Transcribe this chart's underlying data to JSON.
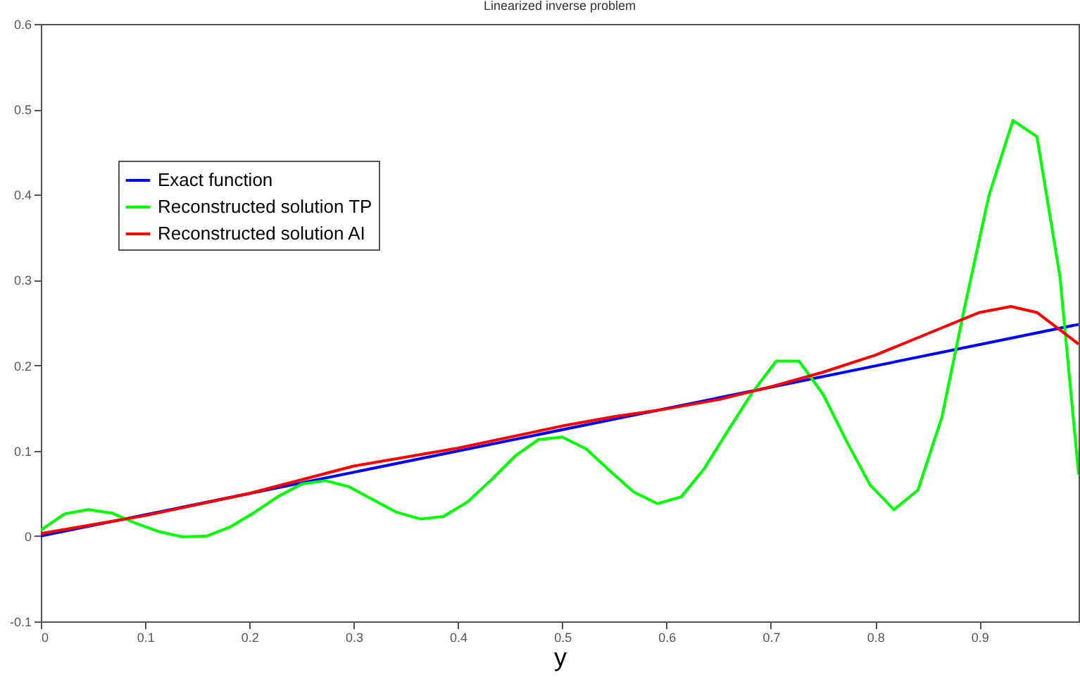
{
  "chart_data": {
    "type": "line",
    "title": "Linearized inverse problem",
    "xlabel": "y",
    "xlim": [
      0,
      0.995
    ],
    "xticks": [
      0,
      0.1,
      0.2,
      0.3,
      0.4,
      0.5,
      0.6,
      0.7,
      0.8,
      0.9
    ],
    "ylim": [
      -0.1,
      0.6
    ],
    "yticks": [
      -0.1,
      0,
      0.1,
      0.2,
      0.3,
      0.4,
      0.5,
      0.6
    ],
    "grid": false,
    "legend": "top left",
    "line_style": "solid",
    "series": [
      {
        "name": "Exact function",
        "color": "#0000ff",
        "x": [
          0,
          0.995
        ],
        "values": [
          0,
          0.248
        ]
      },
      {
        "name": "Reconstructed solution TP",
        "color": "#00ff00",
        "x": [
          0,
          0.0227,
          0.0455,
          0.068,
          0.091,
          0.114,
          0.136,
          0.159,
          0.182,
          0.205,
          0.227,
          0.25,
          0.273,
          0.295,
          0.318,
          0.341,
          0.364,
          0.386,
          0.409,
          0.432,
          0.455,
          0.477,
          0.5,
          0.523,
          0.545,
          0.568,
          0.591,
          0.614,
          0.636,
          0.659,
          0.682,
          0.705,
          0.727,
          0.75,
          0.773,
          0.795,
          0.818,
          0.841,
          0.864,
          0.886,
          0.909,
          0.932,
          0.955,
          0.977,
          0.995
        ],
        "values": [
          0.007,
          0.026,
          0.031,
          0.027,
          0.015,
          0.005,
          -0.001,
          0.0,
          0.011,
          0.028,
          0.046,
          0.061,
          0.065,
          0.058,
          0.043,
          0.028,
          0.02,
          0.023,
          0.04,
          0.066,
          0.094,
          0.113,
          0.116,
          0.102,
          0.077,
          0.052,
          0.038,
          0.046,
          0.079,
          0.124,
          0.168,
          0.205,
          0.205,
          0.166,
          0.11,
          0.06,
          0.031,
          0.054,
          0.14,
          0.27,
          0.399,
          0.487,
          0.468,
          0.305,
          0.072
        ]
      },
      {
        "name": "Reconstructed solution AI",
        "color": "#ff0000",
        "x": [
          0,
          0.1,
          0.2,
          0.3,
          0.4,
          0.5,
          0.55,
          0.6,
          0.65,
          0.7,
          0.75,
          0.8,
          0.85,
          0.9,
          0.93,
          0.955,
          0.995
        ],
        "values": [
          0.003,
          0.024,
          0.05,
          0.082,
          0.103,
          0.129,
          0.14,
          0.149,
          0.16,
          0.175,
          0.192,
          0.212,
          0.237,
          0.262,
          0.269,
          0.262,
          0.225
        ]
      }
    ]
  }
}
